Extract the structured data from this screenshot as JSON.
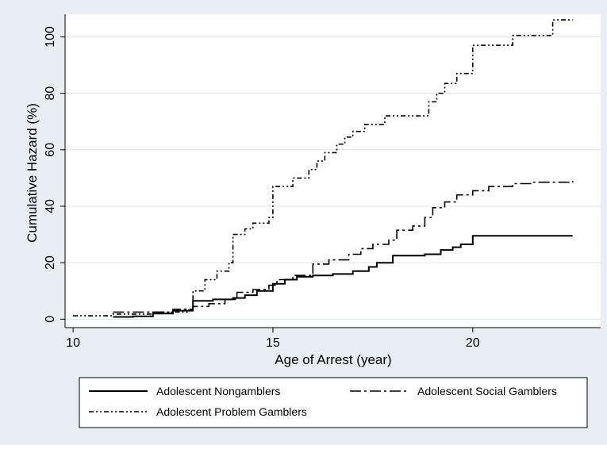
{
  "chart_data": {
    "type": "line",
    "step": true,
    "xlabel": "Age of Arrest (year)",
    "ylabel": "Cumulative Hazard (%)",
    "xlim": [
      9.8,
      23.2
    ],
    "ylim": [
      -3,
      108
    ],
    "xticks": [
      10,
      15,
      20
    ],
    "yticks": [
      0,
      20,
      40,
      60,
      80,
      100
    ],
    "grid": true,
    "legend_position": "bottom",
    "colors": {
      "line": "#000000",
      "outer_background": "#e8eef3",
      "plot_background": "#ffffff",
      "grid": "#dde4e8"
    },
    "series": [
      {
        "name": "Adolescent Nongamblers",
        "dash": "solid",
        "points": [
          [
            11.0,
            0.8
          ],
          [
            11.5,
            1.0
          ],
          [
            12.0,
            2.0
          ],
          [
            12.5,
            3.0
          ],
          [
            12.9,
            3.0
          ],
          [
            13.0,
            6.5
          ],
          [
            13.5,
            7.0
          ],
          [
            14.0,
            7.5
          ],
          [
            14.3,
            8.5
          ],
          [
            14.6,
            10.0
          ],
          [
            15.0,
            12.5
          ],
          [
            15.3,
            14.0
          ],
          [
            15.6,
            15.0
          ],
          [
            16.0,
            15.5
          ],
          [
            16.5,
            16.0
          ],
          [
            17.0,
            17.0
          ],
          [
            17.4,
            18.5
          ],
          [
            17.6,
            20.0
          ],
          [
            18.0,
            22.5
          ],
          [
            18.8,
            23.0
          ],
          [
            19.2,
            24.5
          ],
          [
            19.5,
            25.5
          ],
          [
            19.7,
            26.5
          ],
          [
            20.0,
            29.5
          ],
          [
            22.5,
            29.5
          ]
        ]
      },
      {
        "name": "Adolescent Social Gamblers",
        "dash": "dashdot",
        "points": [
          [
            11.0,
            2.5
          ],
          [
            12.5,
            3.5
          ],
          [
            13.0,
            4.5
          ],
          [
            13.4,
            5.5
          ],
          [
            13.8,
            7.0
          ],
          [
            14.1,
            9.5
          ],
          [
            14.5,
            10.5
          ],
          [
            14.9,
            12.0
          ],
          [
            15.1,
            14.0
          ],
          [
            15.5,
            15.5
          ],
          [
            16.0,
            19.5
          ],
          [
            16.4,
            21.0
          ],
          [
            16.9,
            23.0
          ],
          [
            17.2,
            25.0
          ],
          [
            17.5,
            26.5
          ],
          [
            17.9,
            28.0
          ],
          [
            18.1,
            31.5
          ],
          [
            18.5,
            33.0
          ],
          [
            18.8,
            36.0
          ],
          [
            19.0,
            39.5
          ],
          [
            19.3,
            41.5
          ],
          [
            19.6,
            44.0
          ],
          [
            20.0,
            45.5
          ],
          [
            20.4,
            47.0
          ],
          [
            21.0,
            48.0
          ],
          [
            21.5,
            48.5
          ],
          [
            22.5,
            49.0
          ]
        ]
      },
      {
        "name": "Adolescent Problem Gamblers",
        "dash": "dashdotdot",
        "points": [
          [
            10.0,
            1.2
          ],
          [
            11.0,
            1.8
          ],
          [
            12.0,
            2.5
          ],
          [
            12.9,
            3.2
          ],
          [
            13.0,
            10.0
          ],
          [
            13.3,
            14.0
          ],
          [
            13.6,
            17.0
          ],
          [
            13.9,
            20.0
          ],
          [
            14.0,
            30.0
          ],
          [
            14.3,
            32.0
          ],
          [
            14.5,
            34.0
          ],
          [
            14.9,
            36.0
          ],
          [
            15.0,
            47.0
          ],
          [
            15.5,
            50.0
          ],
          [
            15.9,
            53.0
          ],
          [
            16.1,
            56.0
          ],
          [
            16.3,
            59.0
          ],
          [
            16.6,
            62.0
          ],
          [
            16.8,
            64.5
          ],
          [
            17.0,
            66.5
          ],
          [
            17.3,
            69.0
          ],
          [
            17.8,
            72.0
          ],
          [
            18.8,
            72.0
          ],
          [
            18.9,
            77.0
          ],
          [
            19.1,
            80.0
          ],
          [
            19.3,
            83.5
          ],
          [
            19.6,
            87.0
          ],
          [
            20.0,
            97.0
          ],
          [
            21.0,
            100.5
          ],
          [
            22.0,
            106.0
          ],
          [
            22.5,
            106.0
          ]
        ]
      }
    ]
  }
}
